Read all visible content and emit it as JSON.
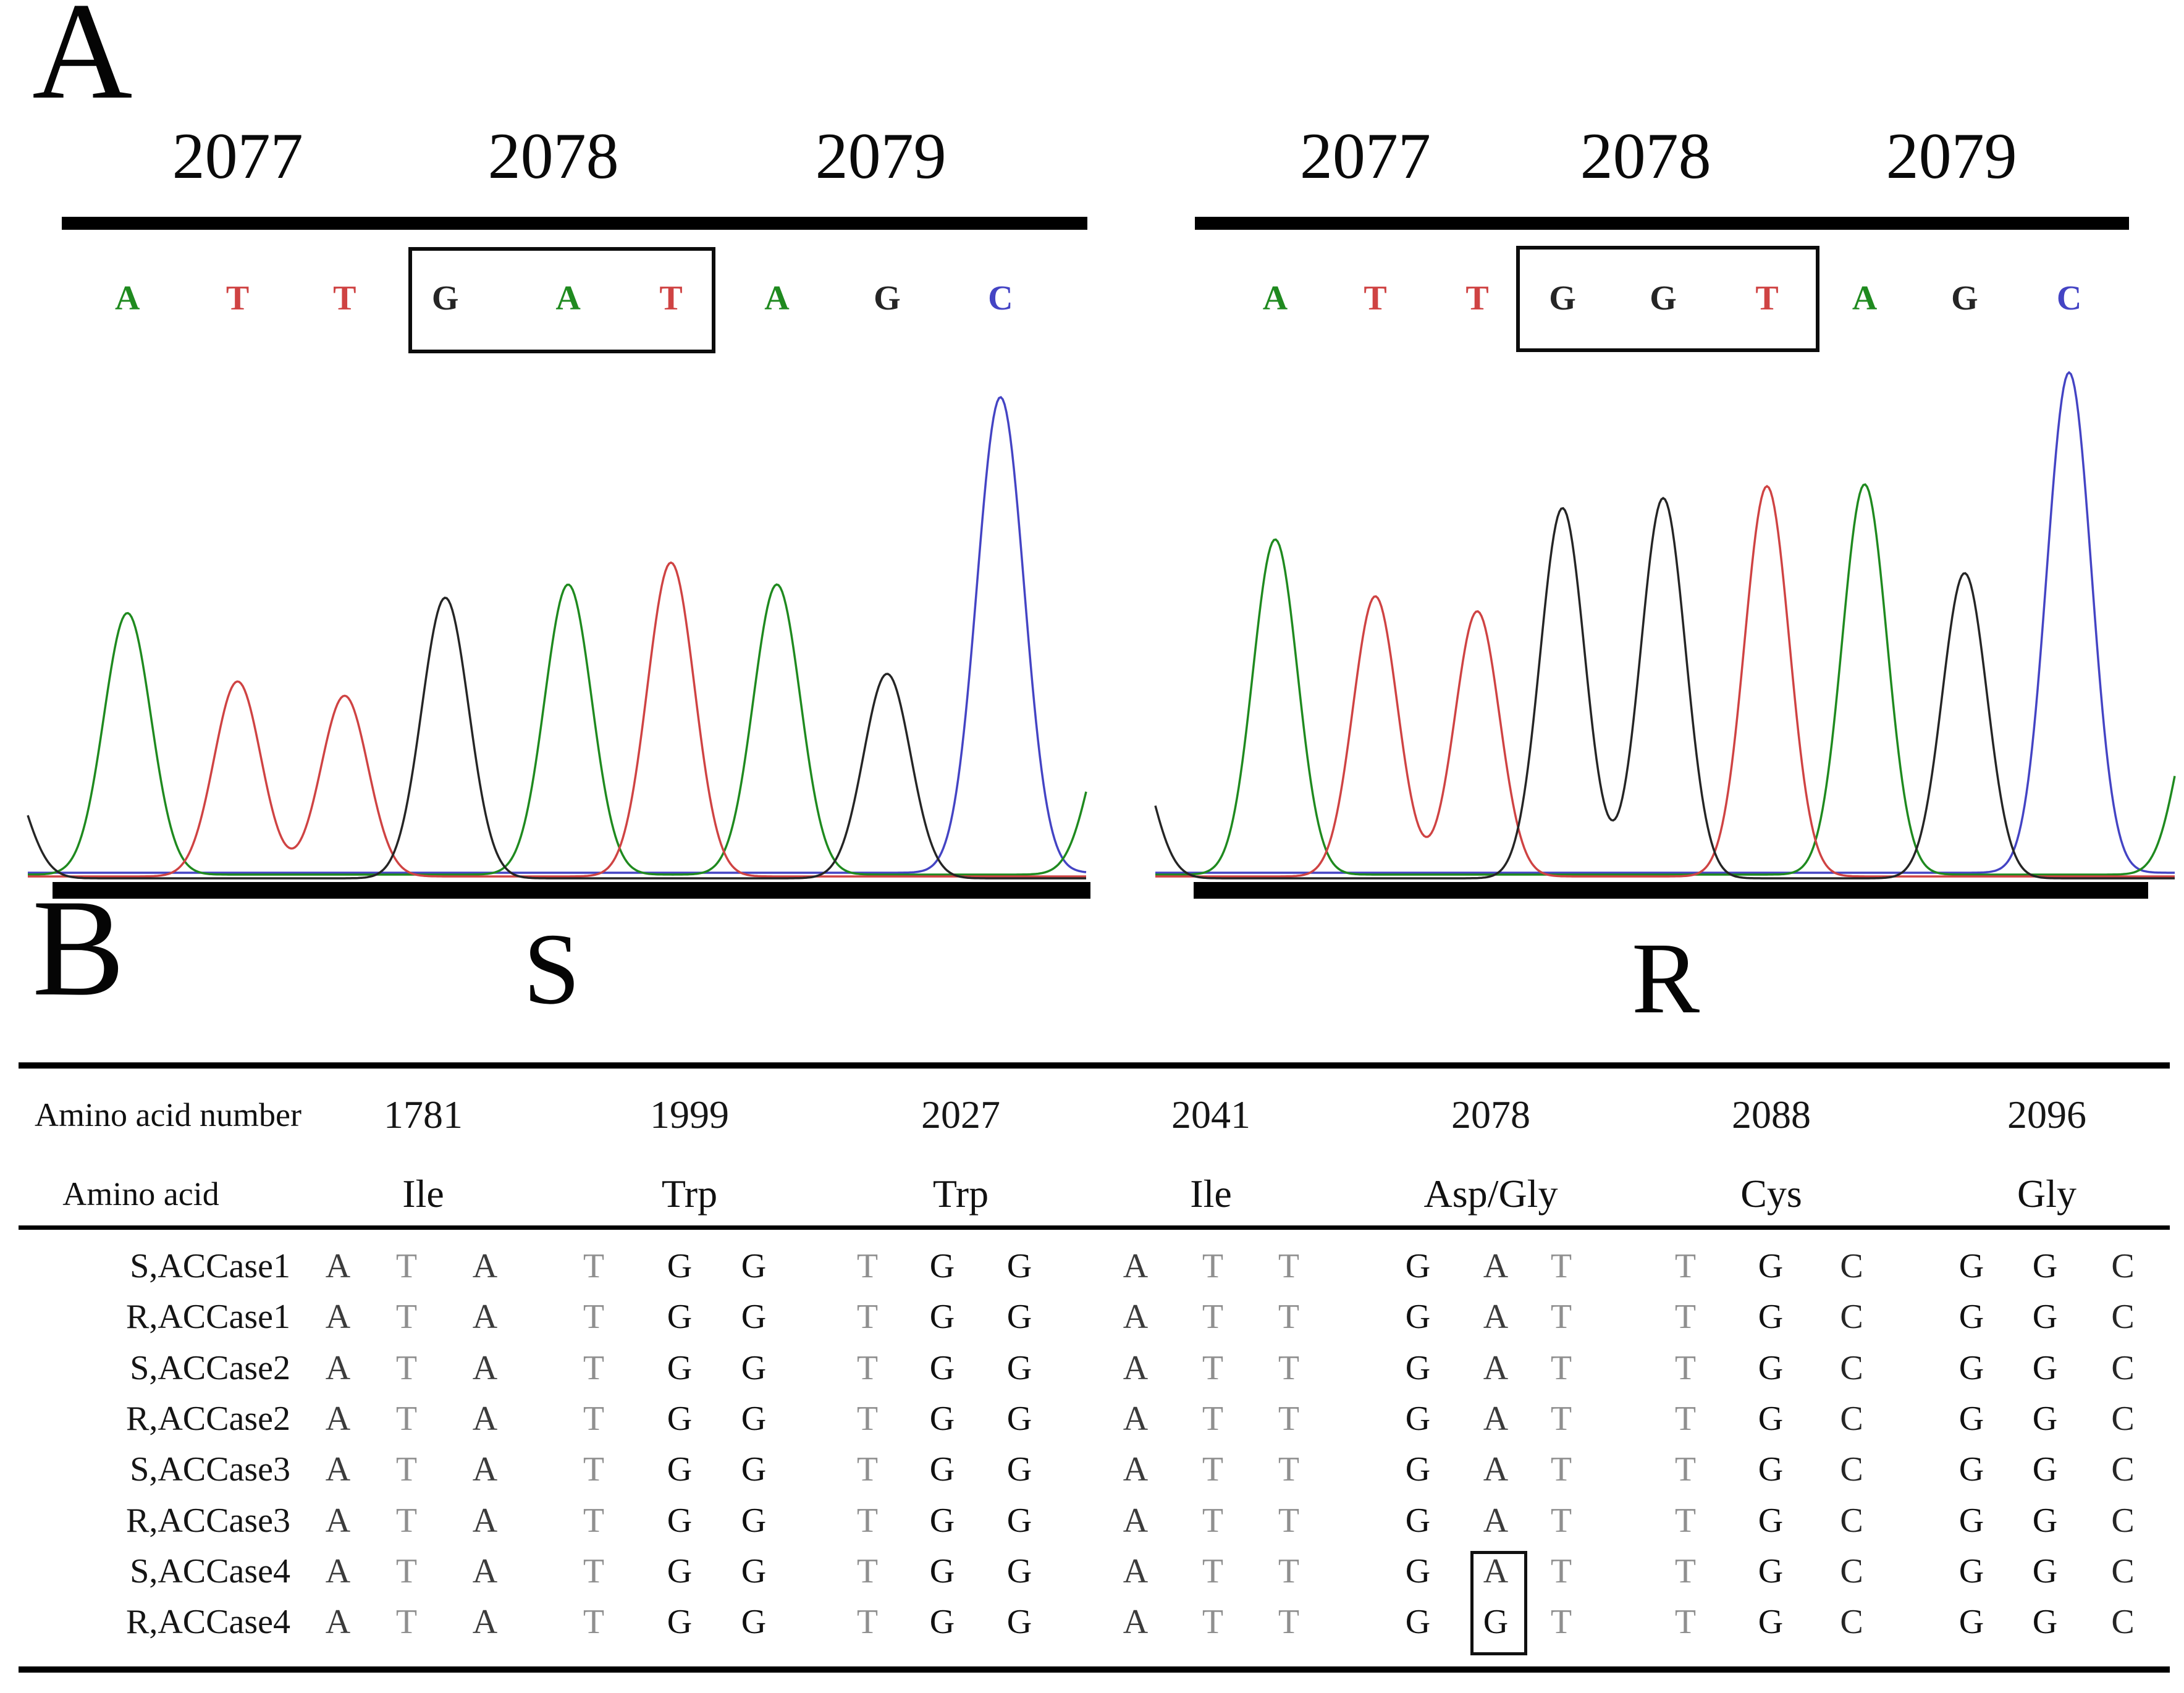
{
  "labels": {
    "panel_a": "A",
    "panel_b": "B"
  },
  "base_colors": {
    "A": "#1f8a1f",
    "T": "#cf4343",
    "G": "#252525",
    "C": "#4444c4"
  },
  "table_base_colors": {
    "A": "#3b3b3b",
    "T": "#8f8f8f",
    "G": "#101010",
    "C": "#262626"
  },
  "chart_data": [
    {
      "type": "line",
      "title": "S",
      "subtitle": "Sanger sequencing chromatogram, susceptible biotype",
      "x_tick_labels": [
        "2077",
        "2078",
        "2079"
      ],
      "x_tick_pos": [
        0.198,
        0.496,
        0.805
      ],
      "bases": [
        "A",
        "T",
        "T",
        "G",
        "A",
        "T",
        "A",
        "G",
        "C"
      ],
      "peak_x": [
        0.094,
        0.198,
        0.299,
        0.394,
        0.51,
        0.607,
        0.707,
        0.811,
        0.918
      ],
      "peak_h": [
        0.55,
        0.41,
        0.38,
        0.59,
        0.61,
        0.66,
        0.61,
        0.43,
        1.0
      ],
      "boxed_bases": [
        3,
        5
      ],
      "boxed_codon": "GAT",
      "edge_peaks": [
        {
          "base": "G",
          "x": -0.025,
          "h": 0.25
        },
        {
          "base": "A",
          "x": 1.025,
          "h": 0.35
        }
      ],
      "ylim": [
        0,
        1
      ],
      "grid": false,
      "legend": false
    },
    {
      "type": "line",
      "title": "R",
      "subtitle": "Sanger sequencing chromatogram, resistant biotype",
      "x_tick_labels": [
        "2077",
        "2078",
        "2079"
      ],
      "x_tick_pos": [
        0.206,
        0.481,
        0.781
      ],
      "bases": [
        "A",
        "T",
        "T",
        "G",
        "G",
        "T",
        "A",
        "G",
        "C"
      ],
      "peak_x": [
        0.1176,
        0.2158,
        0.3158,
        0.3994,
        0.4982,
        0.6,
        0.6958,
        0.7939,
        0.8964
      ],
      "peak_h": [
        0.67,
        0.56,
        0.53,
        0.74,
        0.76,
        0.78,
        0.78,
        0.61,
        1.0
      ],
      "boxed_bases": [
        3,
        5
      ],
      "boxed_codon": "GGT",
      "edge_peaks": [
        {
          "base": "G",
          "x": -0.025,
          "h": 0.28
        },
        {
          "base": "A",
          "x": 1.025,
          "h": 0.38
        }
      ],
      "ylim": [
        0,
        1
      ],
      "grid": false,
      "legend": false
    },
    {
      "type": "table",
      "row1_label": "Amino acid number",
      "row2_label": "Amino acid",
      "columns": [
        {
          "number": "1781",
          "amino_acid": "Ile"
        },
        {
          "number": "1999",
          "amino_acid": "Trp"
        },
        {
          "number": "2027",
          "amino_acid": "Trp"
        },
        {
          "number": "2041",
          "amino_acid": "Ile"
        },
        {
          "number": "2078",
          "amino_acid": "Asp/Gly"
        },
        {
          "number": "2088",
          "amino_acid": "Cys"
        },
        {
          "number": "2096",
          "amino_acid": "Gly"
        }
      ],
      "rows": [
        {
          "label": "S,ACCase1",
          "codons": [
            "ATA",
            "TGG",
            "TGG",
            "ATT",
            "GAT",
            "TGC",
            "GGC"
          ]
        },
        {
          "label": "R,ACCase1",
          "codons": [
            "ATA",
            "TGG",
            "TGG",
            "ATT",
            "GAT",
            "TGC",
            "GGC"
          ]
        },
        {
          "label": "S,ACCase2",
          "codons": [
            "ATA",
            "TGG",
            "TGG",
            "ATT",
            "GAT",
            "TGC",
            "GGC"
          ]
        },
        {
          "label": "R,ACCase2",
          "codons": [
            "ATA",
            "TGG",
            "TGG",
            "ATT",
            "GAT",
            "TGC",
            "GGC"
          ]
        },
        {
          "label": "S,ACCase3",
          "codons": [
            "ATA",
            "TGG",
            "TGG",
            "ATT",
            "GAT",
            "TGC",
            "GGC"
          ]
        },
        {
          "label": "R,ACCase3",
          "codons": [
            "ATA",
            "TGG",
            "TGG",
            "ATT",
            "GAT",
            "TGC",
            "GGC"
          ]
        },
        {
          "label": "S,ACCase4",
          "codons": [
            "ATA",
            "TGG",
            "TGG",
            "ATT",
            "GAT",
            "TGC",
            "GGC"
          ]
        },
        {
          "label": "R,ACCase4",
          "codons": [
            "ATA",
            "TGG",
            "TGG",
            "ATT",
            "GGT",
            "TGC",
            "GGC"
          ]
        }
      ],
      "boxed_cell": {
        "row_indices": [
          6,
          7
        ],
        "codon_index": 4,
        "letter_index": 1
      }
    }
  ]
}
